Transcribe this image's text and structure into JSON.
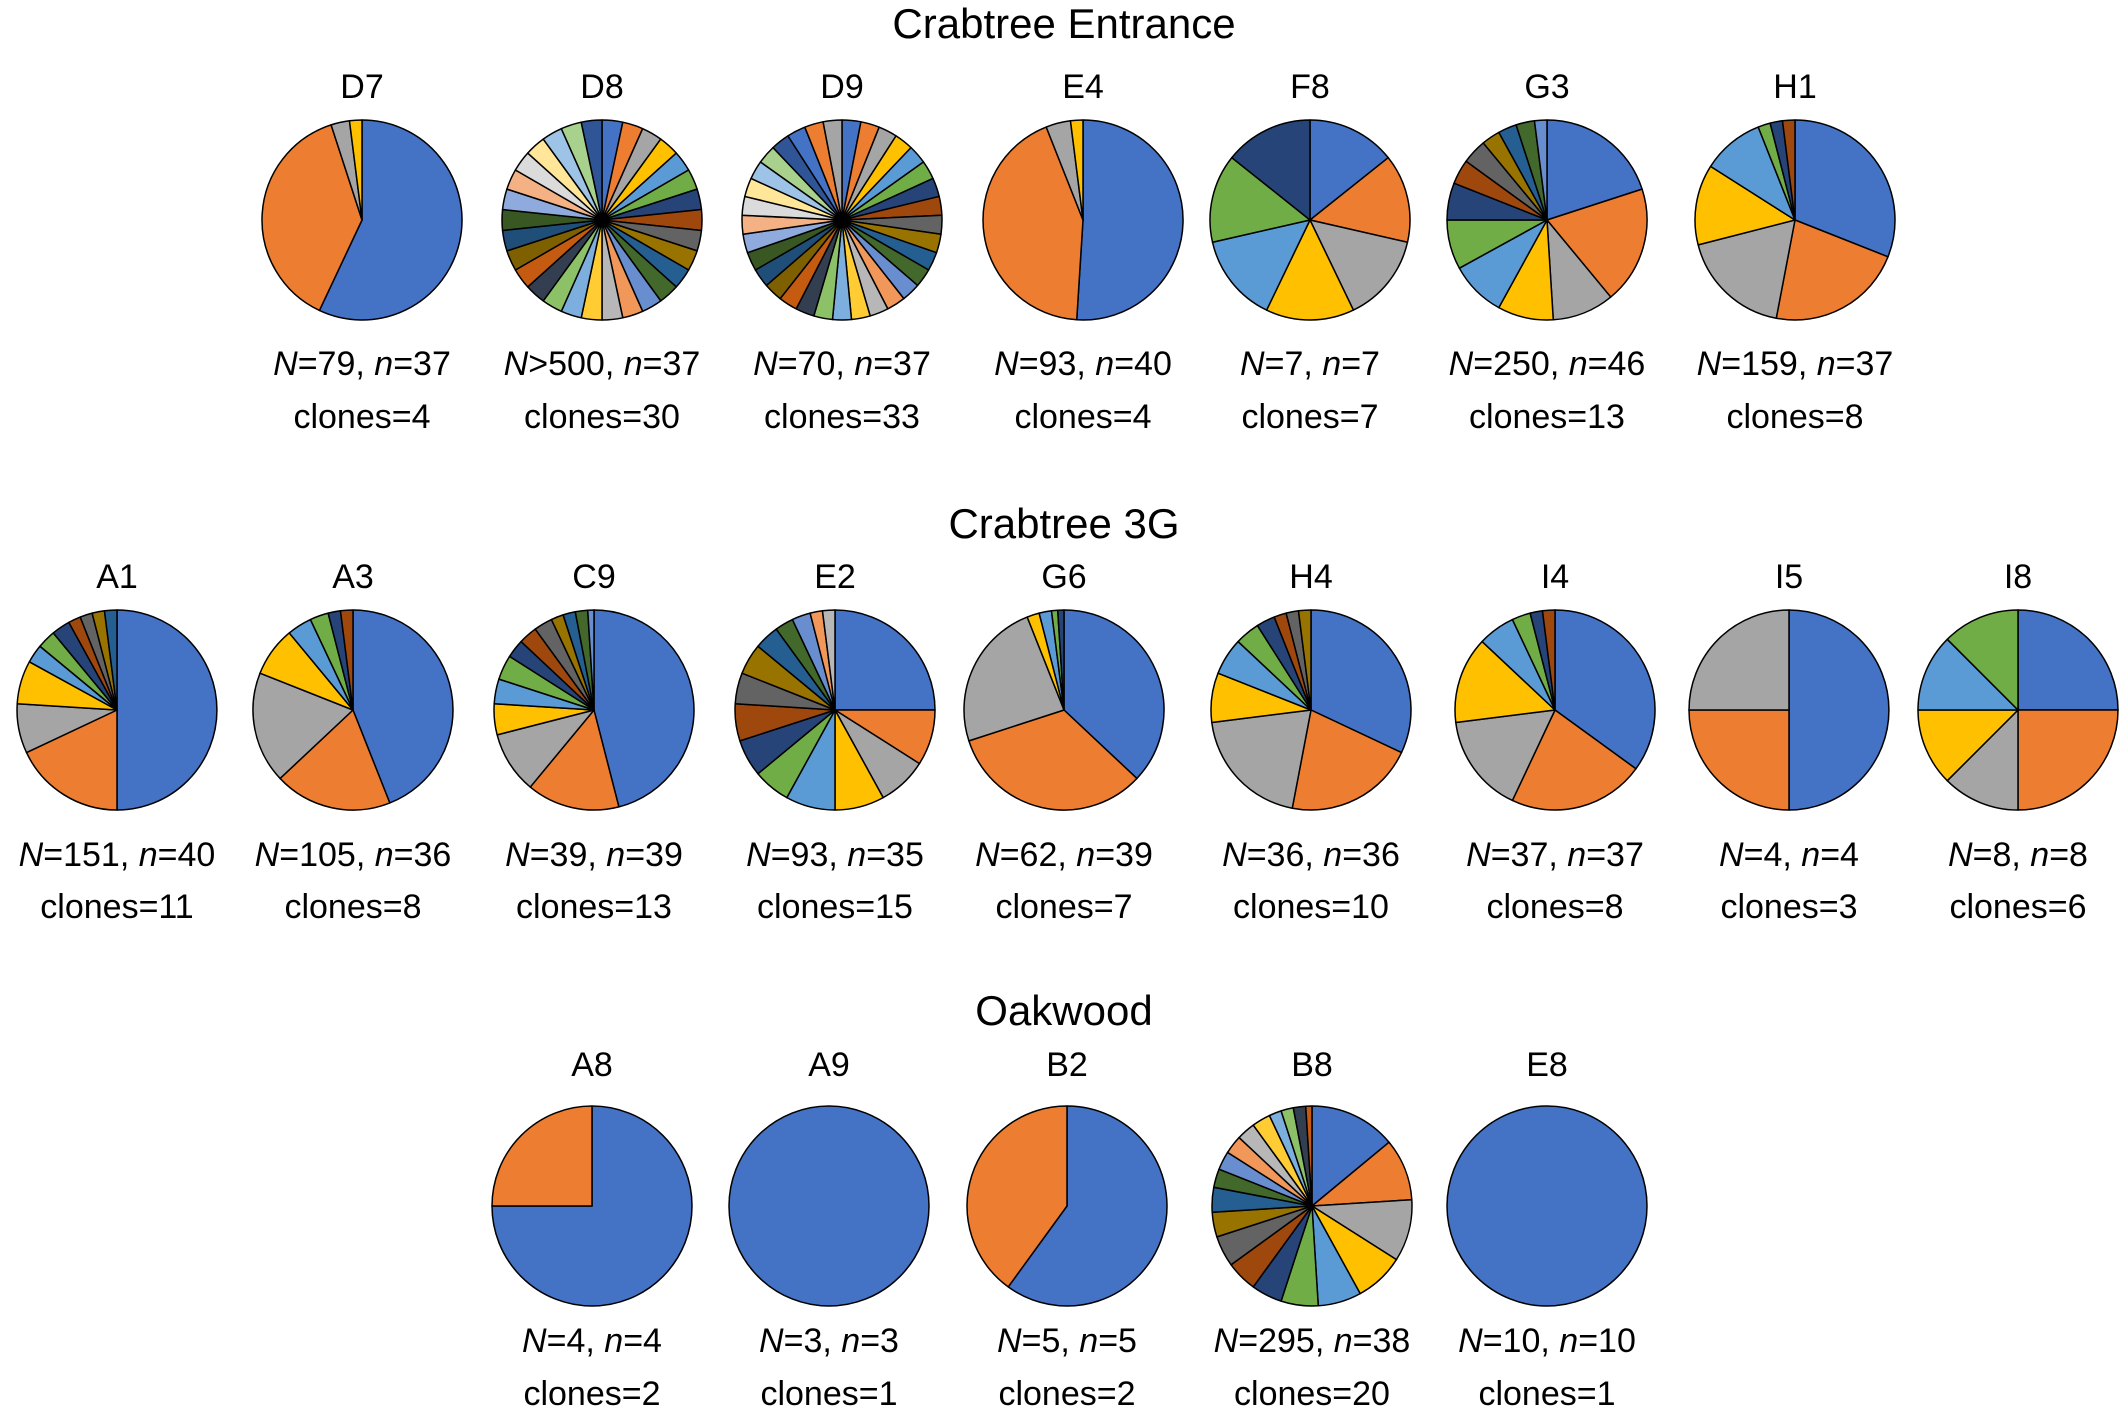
{
  "palette": [
    "#4472C4",
    "#ED7D31",
    "#A5A5A5",
    "#FFC000",
    "#5B9BD5",
    "#70AD47",
    "#264478",
    "#9E480E",
    "#636363",
    "#997300",
    "#255E91",
    "#43682B",
    "#698ED0",
    "#F1975A",
    "#B7B7B7",
    "#FFCD33",
    "#7CAFDD",
    "#8CC168",
    "#333F50",
    "#C55A11",
    "#7F6000",
    "#1F4E79",
    "#385723",
    "#8FAADC",
    "#F4B183",
    "#DBDBDB",
    "#FFE699",
    "#9DC3E6",
    "#A9D18E",
    "#2F5597"
  ],
  "chart_data": [
    {
      "type": "pie",
      "title": "Crabtree Entrance",
      "pies": [
        {
          "label": "D7",
          "N": "79",
          "N_op": "=",
          "n": "37",
          "clones": "4",
          "values": [
            57,
            38,
            3,
            2
          ]
        },
        {
          "label": "D8",
          "N": "500",
          "N_op": ">",
          "n": "37",
          "clones": "30",
          "values": [
            3,
            3,
            3,
            3,
            3,
            3,
            3,
            3,
            3,
            3,
            3,
            3,
            3,
            3,
            3,
            3,
            3,
            3,
            3,
            3,
            3,
            3,
            3,
            3,
            3,
            3,
            3,
            3,
            3,
            3
          ]
        },
        {
          "label": "D9",
          "N": "70",
          "N_op": "=",
          "n": "37",
          "clones": "33",
          "values": [
            3,
            3,
            3,
            3,
            3,
            3,
            3,
            3,
            3,
            3,
            3,
            3,
            3,
            3,
            3,
            3,
            3,
            3,
            3,
            3,
            3,
            3,
            3,
            3,
            3,
            3,
            3,
            3,
            3,
            3,
            3,
            3,
            3
          ]
        },
        {
          "label": "E4",
          "N": "93",
          "N_op": "=",
          "n": "40",
          "clones": "4",
          "values": [
            51,
            43,
            4,
            2
          ]
        },
        {
          "label": "F8",
          "N": "7",
          "N_op": "=",
          "n": "7",
          "clones": "7",
          "values": [
            1,
            1,
            1,
            1,
            1,
            1,
            1
          ]
        },
        {
          "label": "G3",
          "N": "250",
          "N_op": "=",
          "n": "46",
          "clones": "13",
          "values": [
            20,
            19,
            10,
            9,
            9,
            8,
            6,
            4,
            4,
            3,
            3,
            3,
            2
          ]
        },
        {
          "label": "H1",
          "N": "159",
          "N_op": "=",
          "n": "37",
          "clones": "8",
          "values": [
            31,
            22,
            18,
            13,
            10,
            2,
            2,
            2
          ]
        }
      ]
    },
    {
      "type": "pie",
      "title": "Crabtree 3G",
      "pies": [
        {
          "label": "A1",
          "N": "151",
          "N_op": "=",
          "n": "40",
          "clones": "11",
          "values": [
            50,
            18,
            8,
            7,
            3,
            3,
            3,
            2,
            2,
            2,
            2
          ]
        },
        {
          "label": "A3",
          "N": "105",
          "N_op": "=",
          "n": "36",
          "clones": "8",
          "values": [
            44,
            19,
            18,
            8,
            4,
            3,
            2,
            2
          ]
        },
        {
          "label": "C9",
          "N": "39",
          "N_op": "=",
          "n": "39",
          "clones": "13",
          "values": [
            46,
            15,
            10,
            5,
            4,
            4,
            3,
            3,
            3,
            2,
            2,
            2,
            1
          ]
        },
        {
          "label": "E2",
          "N": "93",
          "N_op": "=",
          "n": "35",
          "clones": "15",
          "values": [
            25,
            9,
            8,
            8,
            8,
            6,
            6,
            6,
            5,
            5,
            4,
            3,
            3,
            2,
            2
          ]
        },
        {
          "label": "G6",
          "N": "62",
          "N_op": "=",
          "n": "39",
          "clones": "7",
          "values": [
            37,
            33,
            24,
            2,
            2,
            1,
            1
          ]
        },
        {
          "label": "H4",
          "N": "36",
          "N_op": "=",
          "n": "36",
          "clones": "10",
          "values": [
            32,
            21,
            20,
            8,
            6,
            4,
            3,
            2,
            2,
            2
          ]
        },
        {
          "label": "I4",
          "N": "37",
          "N_op": "=",
          "n": "37",
          "clones": "8",
          "values": [
            35,
            22,
            16,
            14,
            6,
            3,
            2,
            2
          ]
        },
        {
          "label": "I5",
          "N": "4",
          "N_op": "=",
          "n": "4",
          "clones": "3",
          "values": [
            2,
            1,
            1
          ]
        },
        {
          "label": "I8",
          "N": "8",
          "N_op": "=",
          "n": "8",
          "clones": "6",
          "values": [
            2,
            2,
            1,
            1,
            1,
            1
          ]
        }
      ]
    },
    {
      "type": "pie",
      "title": "Oakwood",
      "pies": [
        {
          "label": "A8",
          "N": "4",
          "N_op": "=",
          "n": "4",
          "clones": "2",
          "values": [
            3,
            1
          ]
        },
        {
          "label": "A9",
          "N": "3",
          "N_op": "=",
          "n": "3",
          "clones": "1",
          "values": [
            3
          ]
        },
        {
          "label": "B2",
          "N": "5",
          "N_op": "=",
          "n": "5",
          "clones": "2",
          "values": [
            3,
            2
          ]
        },
        {
          "label": "B8",
          "N": "295",
          "N_op": "=",
          "n": "38",
          "clones": "20",
          "values": [
            14,
            10,
            10,
            8,
            7,
            6,
            5,
            5,
            5,
            4,
            4,
            3,
            3,
            3,
            3,
            3,
            2,
            2,
            2,
            1
          ]
        },
        {
          "label": "E8",
          "N": "10",
          "N_op": "=",
          "n": "10",
          "clones": "1",
          "values": [
            10
          ]
        }
      ]
    }
  ]
}
